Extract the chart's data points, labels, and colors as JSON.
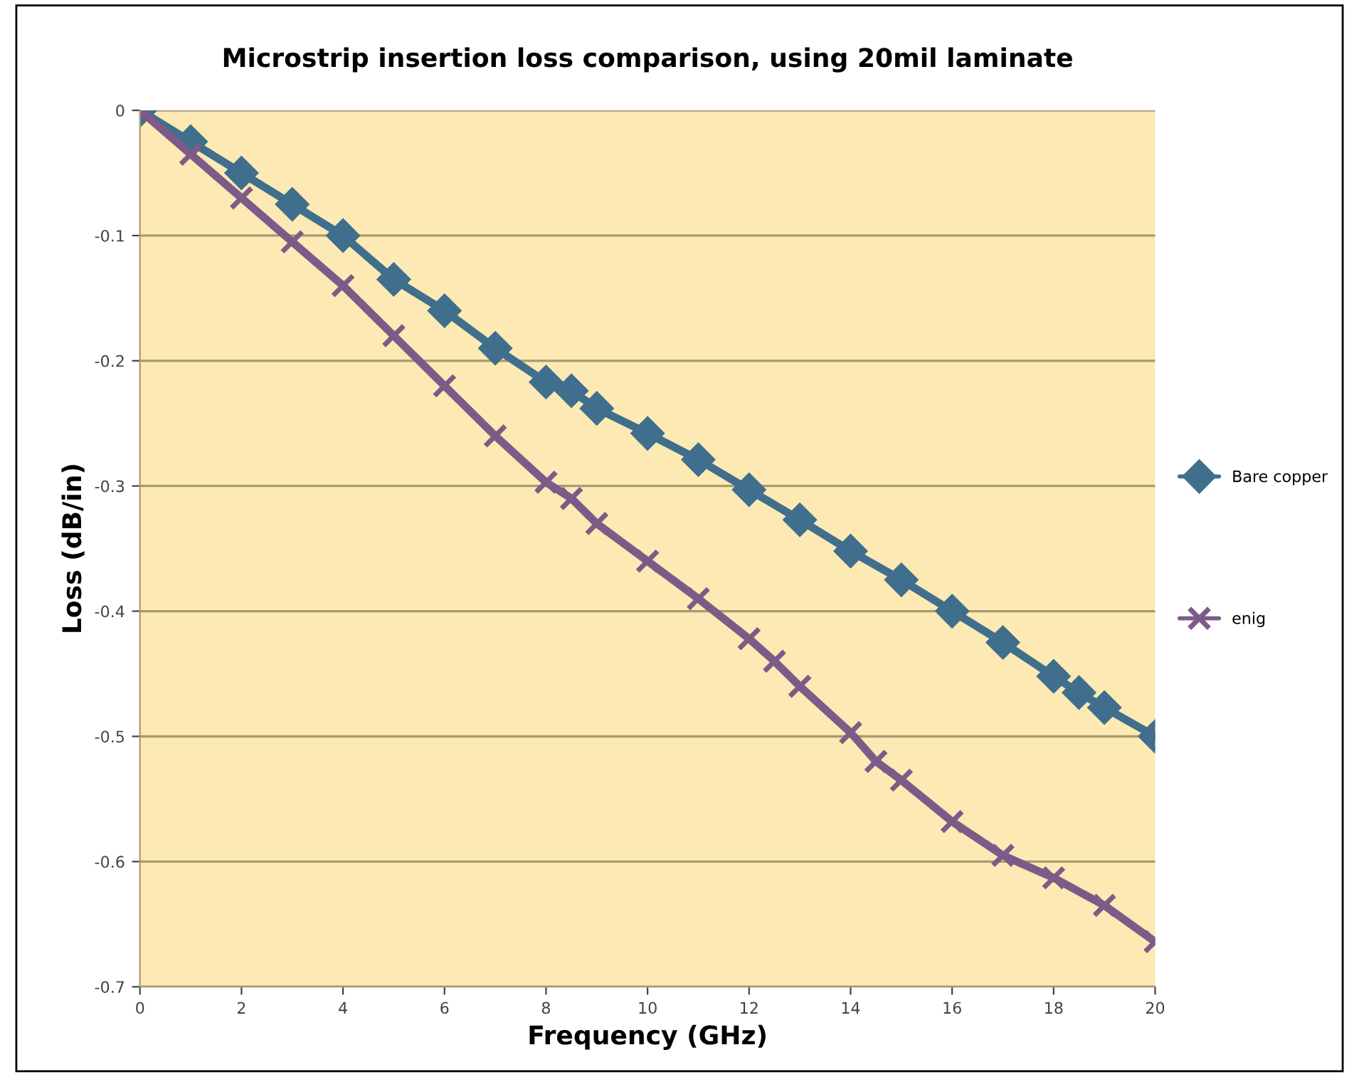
{
  "chart_data": {
    "type": "line",
    "title": "Microstrip insertion loss comparison, using 20mil laminate",
    "xlabel": "Frequency (GHz)",
    "ylabel": "Loss (dB/in)",
    "xlim": [
      0,
      20
    ],
    "xticks": [
      0,
      2,
      4,
      6,
      8,
      10,
      12,
      14,
      16,
      18,
      20
    ],
    "ylim": [
      -0.7,
      0
    ],
    "yticks": [
      -0.7,
      -0.6,
      -0.5,
      -0.4,
      -0.3,
      -0.2,
      -0.1,
      0
    ],
    "grid": "y",
    "legend": "right",
    "line_style": "solid",
    "series": [
      {
        "name": "Bare copper",
        "color": "#3f6f8c",
        "marker": "diamond",
        "x": [
          0,
          1,
          2,
          3,
          4,
          5,
          6,
          7,
          8,
          8.5,
          9,
          10,
          11,
          12,
          13,
          14,
          15,
          16,
          17,
          18,
          18.5,
          19,
          20
        ],
        "values": [
          0,
          -0.025,
          -0.05,
          -0.075,
          -0.1,
          -0.135,
          -0.16,
          -0.19,
          -0.217,
          -0.224,
          -0.238,
          -0.258,
          -0.279,
          -0.303,
          -0.327,
          -0.352,
          -0.375,
          -0.4,
          -0.425,
          -0.452,
          -0.465,
          -0.477,
          -0.5
        ]
      },
      {
        "name": "enig",
        "color": "#7d5b88",
        "marker": "cross",
        "x": [
          0,
          1,
          2,
          3,
          4,
          5,
          6,
          7,
          8,
          8.5,
          9,
          10,
          11,
          12,
          12.5,
          13,
          14,
          14.5,
          15,
          16,
          17,
          18,
          19,
          20
        ],
        "values": [
          0,
          -0.035,
          -0.07,
          -0.105,
          -0.14,
          -0.18,
          -0.22,
          -0.26,
          -0.297,
          -0.31,
          -0.33,
          -0.36,
          -0.39,
          -0.422,
          -0.44,
          -0.46,
          -0.497,
          -0.52,
          -0.535,
          -0.568,
          -0.595,
          -0.613,
          -0.635,
          -0.664
        ]
      }
    ]
  }
}
